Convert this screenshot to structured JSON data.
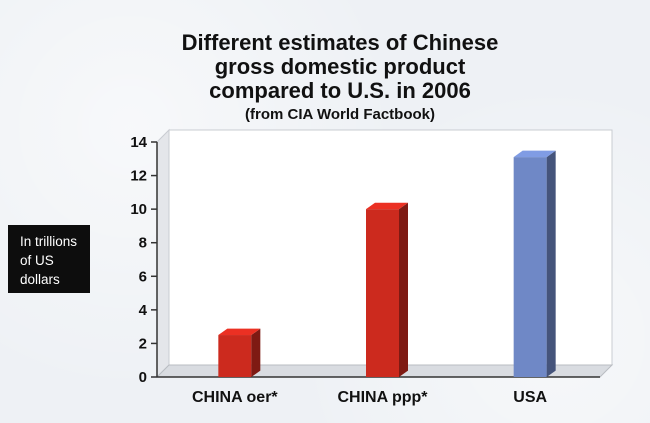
{
  "chart_data": {
    "type": "bar",
    "title_lines": [
      "Different estimates of Chinese",
      "gross domestic product",
      "compared to U.S. in 2006"
    ],
    "subtitle": "(from CIA World Factbook)",
    "ylabel": "In trillions\nof US\ndollars",
    "xlabel": "",
    "categories": [
      "CHINA oer*",
      "CHINA ppp*",
      "USA"
    ],
    "values": [
      2.5,
      10.0,
      13.1
    ],
    "bar_colors": [
      "#cc2a1e",
      "#cc2a1e",
      "#6f88c6"
    ],
    "ylim": [
      0,
      14
    ],
    "yticks": [
      "0",
      "2",
      "4",
      "6",
      "8",
      "10",
      "12",
      "14"
    ],
    "grid": false,
    "legend": "none"
  }
}
